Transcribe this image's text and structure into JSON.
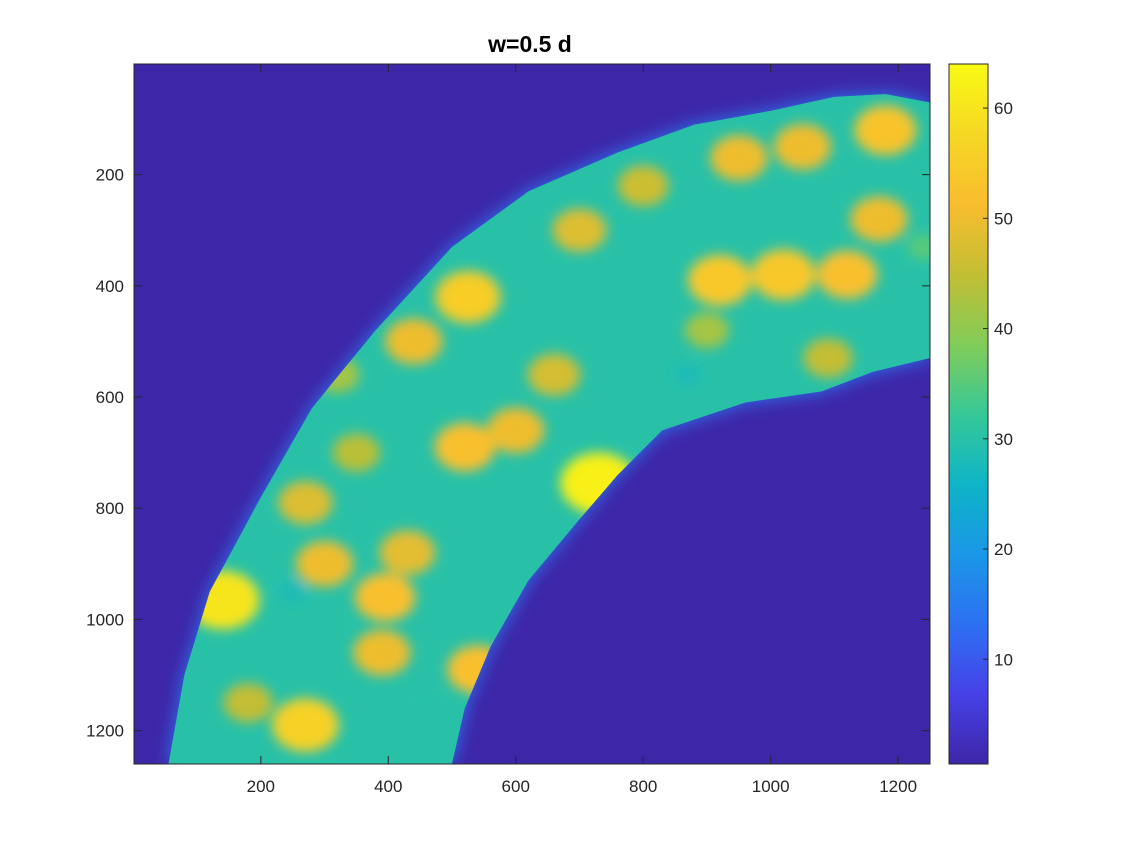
{
  "chart_data": {
    "type": "heatmap",
    "title": "w=0.5 d",
    "xlabel": "",
    "ylabel": "",
    "xlim": [
      1,
      1250
    ],
    "ylim": [
      1,
      1260
    ],
    "y_reversed": true,
    "colormap": "parula",
    "background_value": 0,
    "xticks": [
      200,
      400,
      600,
      800,
      1000,
      1200
    ],
    "yticks": [
      200,
      400,
      600,
      800,
      1000,
      1200
    ],
    "colorbar": {
      "range": [
        0.5,
        64
      ],
      "ticks": [
        10,
        20,
        30,
        40,
        50,
        60
      ]
    },
    "region": {
      "description": "curved band of nonzero values",
      "base_value": 30,
      "upper_edge": [
        [
          55,
          1260
        ],
        [
          80,
          1100
        ],
        [
          120,
          950
        ],
        [
          200,
          780
        ],
        [
          280,
          620
        ],
        [
          380,
          480
        ],
        [
          500,
          330
        ],
        [
          620,
          230
        ],
        [
          760,
          160
        ],
        [
          880,
          110
        ],
        [
          1000,
          85
        ],
        [
          1100,
          60
        ],
        [
          1180,
          55
        ],
        [
          1250,
          70
        ]
      ],
      "lower_edge": [
        [
          1250,
          530
        ],
        [
          1160,
          555
        ],
        [
          1080,
          590
        ],
        [
          960,
          610
        ],
        [
          830,
          660
        ],
        [
          760,
          740
        ],
        [
          700,
          820
        ],
        [
          620,
          930
        ],
        [
          560,
          1050
        ],
        [
          520,
          1160
        ],
        [
          500,
          1260
        ]
      ]
    },
    "hotspots": [
      {
        "x": 140,
        "y": 965,
        "value": 60
      },
      {
        "x": 270,
        "y": 1190,
        "value": 56
      },
      {
        "x": 395,
        "y": 960,
        "value": 52
      },
      {
        "x": 390,
        "y": 1060,
        "value": 50
      },
      {
        "x": 540,
        "y": 1090,
        "value": 52
      },
      {
        "x": 430,
        "y": 880,
        "value": 49
      },
      {
        "x": 730,
        "y": 755,
        "value": 62
      },
      {
        "x": 520,
        "y": 690,
        "value": 52
      },
      {
        "x": 600,
        "y": 660,
        "value": 50
      },
      {
        "x": 440,
        "y": 500,
        "value": 50
      },
      {
        "x": 525,
        "y": 420,
        "value": 55
      },
      {
        "x": 300,
        "y": 900,
        "value": 50
      },
      {
        "x": 270,
        "y": 790,
        "value": 48
      },
      {
        "x": 660,
        "y": 560,
        "value": 47
      },
      {
        "x": 920,
        "y": 390,
        "value": 54
      },
      {
        "x": 1020,
        "y": 380,
        "value": 54
      },
      {
        "x": 1120,
        "y": 380,
        "value": 52
      },
      {
        "x": 1170,
        "y": 280,
        "value": 50
      },
      {
        "x": 1180,
        "y": 120,
        "value": 53
      },
      {
        "x": 1050,
        "y": 150,
        "value": 50
      },
      {
        "x": 950,
        "y": 170,
        "value": 50
      },
      {
        "x": 700,
        "y": 300,
        "value": 48
      },
      {
        "x": 800,
        "y": 220,
        "value": 46
      },
      {
        "x": 180,
        "y": 1150,
        "value": 45
      },
      {
        "x": 350,
        "y": 700,
        "value": 44
      },
      {
        "x": 320,
        "y": 560,
        "value": 42
      },
      {
        "x": 1090,
        "y": 530,
        "value": 45
      },
      {
        "x": 870,
        "y": 560,
        "value": 28
      },
      {
        "x": 250,
        "y": 950,
        "value": 28
      },
      {
        "x": 460,
        "y": 1150,
        "value": 30
      },
      {
        "x": 900,
        "y": 480,
        "value": 42
      },
      {
        "x": 1240,
        "y": 330,
        "value": 35
      }
    ]
  }
}
